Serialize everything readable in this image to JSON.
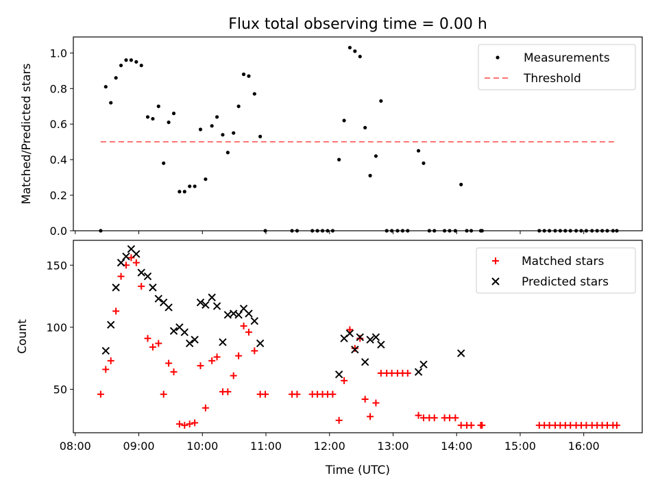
{
  "chart_data": {
    "title": "Flux total observing time = 0.00 h",
    "xlabel": "Time (UTC)",
    "x_ticks": [
      "08:00",
      "09:00",
      "10:00",
      "11:00",
      "12:00",
      "13:00",
      "14:00",
      "15:00",
      "16:00"
    ],
    "x_tick_hours": [
      8,
      9,
      10,
      11,
      12,
      13,
      14,
      15,
      16
    ],
    "xlim_hours": [
      7.97,
      16.92
    ],
    "panels": [
      {
        "type": "scatter",
        "ylabel": "Matched/Predicted stars",
        "ylim": [
          0,
          1.09
        ],
        "yticks": [
          0.0,
          0.2,
          0.4,
          0.6,
          0.8,
          1.0
        ],
        "y_tick_labels": [
          "0.0",
          "0.2",
          "0.4",
          "0.6",
          "0.8",
          "1.0"
        ],
        "legend_position": "upper right",
        "series": [
          {
            "name": "Measurements",
            "marker": "dot",
            "color": "#000000",
            "points": [
              [
                8.4,
                0.0
              ],
              [
                8.48,
                0.81
              ],
              [
                8.56,
                0.72
              ],
              [
                8.64,
                0.86
              ],
              [
                8.72,
                0.93
              ],
              [
                8.8,
                0.96
              ],
              [
                8.88,
                0.96
              ],
              [
                8.96,
                0.95
              ],
              [
                9.04,
                0.93
              ],
              [
                9.14,
                0.64
              ],
              [
                9.22,
                0.63
              ],
              [
                9.31,
                0.7
              ],
              [
                9.39,
                0.38
              ],
              [
                9.47,
                0.61
              ],
              [
                9.55,
                0.66
              ],
              [
                9.64,
                0.22
              ],
              [
                9.72,
                0.22
              ],
              [
                9.8,
                0.25
              ],
              [
                9.88,
                0.25
              ],
              [
                9.97,
                0.57
              ],
              [
                10.05,
                0.29
              ],
              [
                10.15,
                0.59
              ],
              [
                10.23,
                0.64
              ],
              [
                10.32,
                0.54
              ],
              [
                10.4,
                0.44
              ],
              [
                10.49,
                0.55
              ],
              [
                10.57,
                0.7
              ],
              [
                10.65,
                0.88
              ],
              [
                10.73,
                0.87
              ],
              [
                10.82,
                0.77
              ],
              [
                10.91,
                0.53
              ],
              [
                10.99,
                0.0
              ],
              [
                11.41,
                0.0
              ],
              [
                11.49,
                0.0
              ],
              [
                11.73,
                0.0
              ],
              [
                11.81,
                0.0
              ],
              [
                11.89,
                0.0
              ],
              [
                11.97,
                0.0
              ],
              [
                12.05,
                0.0
              ],
              [
                12.15,
                0.4
              ],
              [
                12.23,
                0.62
              ],
              [
                12.32,
                1.03
              ],
              [
                12.4,
                1.01
              ],
              [
                12.48,
                0.98
              ],
              [
                12.56,
                0.58
              ],
              [
                12.64,
                0.31
              ],
              [
                12.73,
                0.42
              ],
              [
                12.81,
                0.73
              ],
              [
                12.9,
                0.0
              ],
              [
                12.98,
                0.0
              ],
              [
                13.07,
                0.0
              ],
              [
                13.15,
                0.0
              ],
              [
                13.23,
                0.0
              ],
              [
                13.4,
                0.45
              ],
              [
                13.48,
                0.38
              ],
              [
                13.57,
                0.0
              ],
              [
                13.65,
                0.0
              ],
              [
                13.81,
                0.0
              ],
              [
                13.89,
                0.0
              ],
              [
                13.98,
                0.0
              ],
              [
                14.07,
                0.26
              ],
              [
                14.16,
                0.0
              ],
              [
                14.23,
                0.0
              ],
              [
                14.38,
                0.0
              ],
              [
                14.4,
                0.0
              ],
              [
                15.3,
                0.0
              ],
              [
                15.38,
                0.0
              ],
              [
                15.46,
                0.0
              ],
              [
                15.55,
                0.0
              ],
              [
                15.63,
                0.0
              ],
              [
                15.71,
                0.0
              ],
              [
                15.79,
                0.0
              ],
              [
                15.88,
                0.0
              ],
              [
                15.96,
                0.0
              ],
              [
                16.04,
                0.0
              ],
              [
                16.13,
                0.0
              ],
              [
                16.21,
                0.0
              ],
              [
                16.29,
                0.0
              ],
              [
                16.37,
                0.0
              ],
              [
                16.46,
                0.0
              ],
              [
                16.52,
                0.0
              ]
            ]
          },
          {
            "name": "Threshold",
            "marker": "dashed-line",
            "color": "#ff7070",
            "points": [
              [
                8.4,
                0.5
              ],
              [
                16.52,
                0.5
              ]
            ]
          }
        ]
      },
      {
        "type": "scatter",
        "ylabel": "Count",
        "ylim": [
          15,
          170
        ],
        "yticks": [
          50,
          100,
          150
        ],
        "y_tick_labels": [
          "50",
          "100",
          "150"
        ],
        "legend_position": "upper right",
        "series": [
          {
            "name": "Matched stars",
            "marker": "plus",
            "color": "#ff0000",
            "points": [
              [
                8.4,
                46
              ],
              [
                8.48,
                66
              ],
              [
                8.56,
                73
              ],
              [
                8.64,
                113
              ],
              [
                8.72,
                141
              ],
              [
                8.8,
                150
              ],
              [
                8.88,
                156
              ],
              [
                8.96,
                152
              ],
              [
                9.04,
                133
              ],
              [
                9.14,
                91
              ],
              [
                9.22,
                84
              ],
              [
                9.31,
                87
              ],
              [
                9.39,
                46
              ],
              [
                9.47,
                71
              ],
              [
                9.55,
                64
              ],
              [
                9.64,
                22
              ],
              [
                9.72,
                21
              ],
              [
                9.8,
                22
              ],
              [
                9.88,
                23
              ],
              [
                9.97,
                69
              ],
              [
                10.05,
                35
              ],
              [
                10.15,
                73
              ],
              [
                10.23,
                76
              ],
              [
                10.32,
                48
              ],
              [
                10.4,
                48
              ],
              [
                10.49,
                61
              ],
              [
                10.57,
                77
              ],
              [
                10.65,
                101
              ],
              [
                10.73,
                96
              ],
              [
                10.82,
                81
              ],
              [
                10.91,
                46
              ],
              [
                10.99,
                46
              ],
              [
                11.41,
                46
              ],
              [
                11.49,
                46
              ],
              [
                11.73,
                46
              ],
              [
                11.81,
                46
              ],
              [
                11.89,
                46
              ],
              [
                11.97,
                46
              ],
              [
                12.05,
                46
              ],
              [
                12.15,
                25
              ],
              [
                12.23,
                57
              ],
              [
                12.32,
                98
              ],
              [
                12.4,
                83
              ],
              [
                12.48,
                91
              ],
              [
                12.56,
                42
              ],
              [
                12.64,
                28
              ],
              [
                12.73,
                39
              ],
              [
                12.81,
                63
              ],
              [
                12.9,
                63
              ],
              [
                12.98,
                63
              ],
              [
                13.07,
                63
              ],
              [
                13.15,
                63
              ],
              [
                13.23,
                63
              ],
              [
                13.4,
                29
              ],
              [
                13.48,
                27
              ],
              [
                13.57,
                27
              ],
              [
                13.65,
                27
              ],
              [
                13.81,
                27
              ],
              [
                13.89,
                27
              ],
              [
                13.98,
                27
              ],
              [
                14.07,
                21
              ],
              [
                14.16,
                21
              ],
              [
                14.23,
                21
              ],
              [
                14.38,
                21
              ],
              [
                14.4,
                21
              ],
              [
                15.3,
                21
              ],
              [
                15.38,
                21
              ],
              [
                15.46,
                21
              ],
              [
                15.55,
                21
              ],
              [
                15.63,
                21
              ],
              [
                15.71,
                21
              ],
              [
                15.79,
                21
              ],
              [
                15.88,
                21
              ],
              [
                15.96,
                21
              ],
              [
                16.04,
                21
              ],
              [
                16.13,
                21
              ],
              [
                16.21,
                21
              ],
              [
                16.29,
                21
              ],
              [
                16.37,
                21
              ],
              [
                16.46,
                21
              ],
              [
                16.52,
                21
              ]
            ]
          },
          {
            "name": "Predicted stars",
            "marker": "x",
            "color": "#000000",
            "points": [
              [
                8.48,
                81
              ],
              [
                8.56,
                102
              ],
              [
                8.64,
                132
              ],
              [
                8.72,
                152
              ],
              [
                8.8,
                157
              ],
              [
                8.88,
                163
              ],
              [
                8.96,
                159
              ],
              [
                9.04,
                144
              ],
              [
                9.14,
                141
              ],
              [
                9.22,
                132
              ],
              [
                9.31,
                123
              ],
              [
                9.39,
                120
              ],
              [
                9.47,
                116
              ],
              [
                9.55,
                97
              ],
              [
                9.64,
                100
              ],
              [
                9.72,
                96
              ],
              [
                9.8,
                87
              ],
              [
                9.88,
                90
              ],
              [
                9.97,
                120
              ],
              [
                10.05,
                118
              ],
              [
                10.15,
                124
              ],
              [
                10.23,
                117
              ],
              [
                10.32,
                88
              ],
              [
                10.4,
                110
              ],
              [
                10.49,
                111
              ],
              [
                10.57,
                110
              ],
              [
                10.65,
                115
              ],
              [
                10.73,
                111
              ],
              [
                10.82,
                105
              ],
              [
                10.91,
                87
              ],
              [
                12.15,
                62
              ],
              [
                12.23,
                91
              ],
              [
                12.32,
                95
              ],
              [
                12.4,
                82
              ],
              [
                12.48,
                92
              ],
              [
                12.56,
                72
              ],
              [
                12.64,
                90
              ],
              [
                12.73,
                92
              ],
              [
                12.81,
                86
              ],
              [
                13.4,
                64
              ],
              [
                13.48,
                70
              ],
              [
                14.07,
                79
              ]
            ]
          }
        ]
      }
    ]
  }
}
